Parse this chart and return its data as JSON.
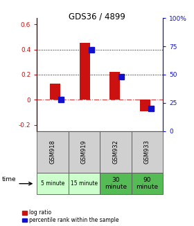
{
  "title": "GDS36 / 4899",
  "samples": [
    "GSM918",
    "GSM919",
    "GSM932",
    "GSM933"
  ],
  "time_labels": [
    "5 minute",
    "15 minute",
    "30\nminute",
    "90\nminute"
  ],
  "time_colors": [
    "#ccffcc",
    "#ccffcc",
    "#55bb55",
    "#55bb55"
  ],
  "log_ratios": [
    0.13,
    0.45,
    0.22,
    -0.09
  ],
  "percentile_ranks_pct": [
    28,
    72,
    48,
    20
  ],
  "bar_color": "#cc1111",
  "pct_color": "#1111cc",
  "ylim_left": [
    -0.25,
    0.65
  ],
  "ylim_right": [
    0,
    100
  ],
  "yticks_left": [
    -0.2,
    0.0,
    0.2,
    0.4,
    0.6
  ],
  "yticks_right": [
    0,
    25,
    50,
    75,
    100
  ],
  "ytick_labels_left": [
    "-0.2",
    "0",
    "0.2",
    "0.4",
    "0.6"
  ],
  "ytick_labels_right": [
    "0",
    "25",
    "50",
    "75",
    "100%"
  ],
  "hlines": [
    0.2,
    0.4
  ],
  "zero_line": 0.0,
  "bar_width": 0.35,
  "pct_marker_size": 6
}
